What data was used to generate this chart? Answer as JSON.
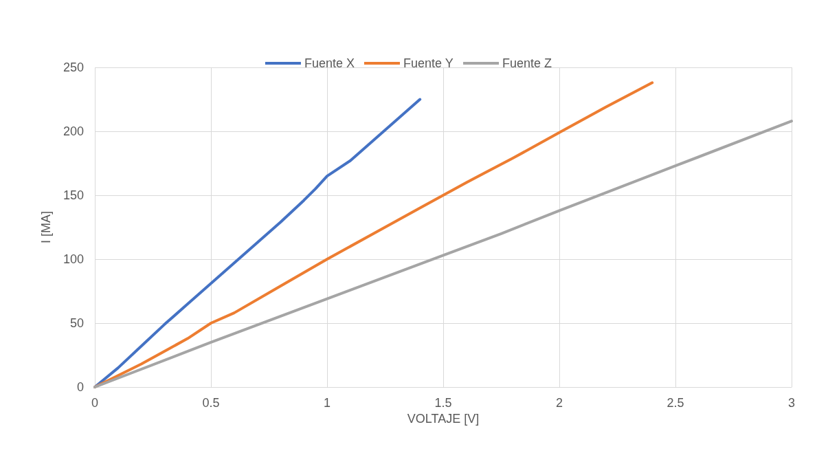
{
  "chart_data": {
    "type": "line",
    "xlabel": "VOLTAJE [V]",
    "ylabel": "I [MA]",
    "xlim": [
      0,
      3
    ],
    "xticks": [
      0,
      0.5,
      1,
      1.5,
      2,
      2.5,
      3
    ],
    "ylim": [
      0,
      250
    ],
    "yticks": [
      0,
      50,
      100,
      150,
      200,
      250
    ],
    "grid": true,
    "legend": "top",
    "marker": "none",
    "line_style": "solid",
    "series": [
      {
        "name": "Fuente X",
        "color": "#4472c4",
        "x": [
          0,
          0.1,
          0.2,
          0.3,
          0.4,
          0.5,
          0.6,
          0.7,
          0.8,
          0.9,
          0.95,
          1.0,
          1.1,
          1.2,
          1.3,
          1.4
        ],
        "values": [
          0,
          15,
          32,
          49,
          65,
          81,
          97,
          113,
          129,
          146,
          155,
          165,
          177,
          193,
          209,
          225
        ]
      },
      {
        "name": "Fuente Y",
        "color": "#ed7d31",
        "x": [
          0,
          0.2,
          0.4,
          0.5,
          0.6,
          0.8,
          1.0,
          1.2,
          1.4,
          1.6,
          1.8,
          2.0,
          2.2,
          2.4
        ],
        "values": [
          0,
          18,
          38,
          50,
          58,
          79,
          100,
          120,
          140,
          160,
          179,
          199,
          219,
          238
        ]
      },
      {
        "name": "Fuente Z",
        "color": "#a5a5a5",
        "x": [
          0,
          0.5,
          1,
          1.5,
          1.75,
          2,
          2.5,
          3
        ],
        "values": [
          0,
          35,
          69,
          103,
          120,
          138,
          173,
          208
        ]
      }
    ]
  }
}
